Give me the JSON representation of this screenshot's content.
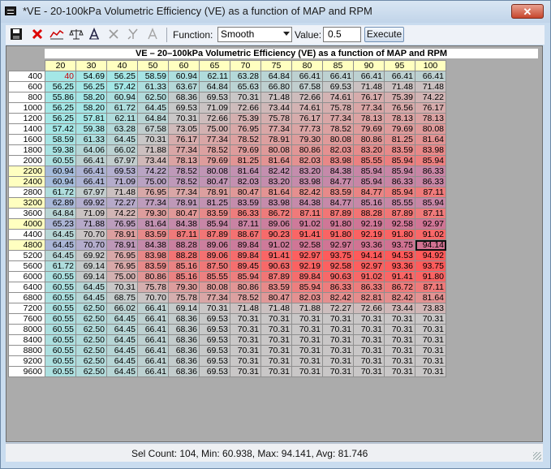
{
  "window": {
    "title": "*VE - 20-100kPa Volumetric Efficiency (VE) as a function of MAP and RPM",
    "close_glyph": "✕"
  },
  "toolbar": {
    "icons": [
      "save-icon",
      "delete-icon",
      "graph-icon",
      "scale-icon",
      "interpolate-icon",
      "clear-icon",
      "smooth-icon",
      "text-icon"
    ],
    "function_label": "Function:",
    "function_value": "Smooth",
    "value_label": "Value:",
    "value_text": "0.5",
    "execute_label": "Execute"
  },
  "table": {
    "title": "VE – 20–100kPa Volumetric Efficiency (VE) as a function of MAP and RPM",
    "columns": [
      "20",
      "30",
      "40",
      "50",
      "60",
      "65",
      "70",
      "75",
      "80",
      "85",
      "90",
      "95",
      "100"
    ],
    "rows": [
      {
        "rpm": "400",
        "values": [
          "40",
          "54.69",
          "56.25",
          "58.59",
          "60.94",
          "62.11",
          "63.28",
          "64.84",
          "66.41",
          "66.41",
          "66.41",
          "66.41",
          "66.41"
        ]
      },
      {
        "rpm": "600",
        "values": [
          "56.25",
          "56.25",
          "57.42",
          "61.33",
          "63.67",
          "64.84",
          "65.63",
          "66.80",
          "67.58",
          "69.53",
          "71.48",
          "71.48",
          "71.48"
        ]
      },
      {
        "rpm": "800",
        "values": [
          "55.86",
          "58.20",
          "60.94",
          "62.50",
          "68.36",
          "69.53",
          "70.31",
          "71.48",
          "72.66",
          "74.61",
          "76.17",
          "75.39",
          "74.22"
        ]
      },
      {
        "rpm": "1000",
        "values": [
          "56.25",
          "58.20",
          "61.72",
          "64.45",
          "69.53",
          "71.09",
          "72.66",
          "73.44",
          "74.61",
          "75.78",
          "77.34",
          "76.56",
          "76.17"
        ]
      },
      {
        "rpm": "1200",
        "values": [
          "56.25",
          "57.81",
          "62.11",
          "64.84",
          "70.31",
          "72.66",
          "75.39",
          "75.78",
          "76.17",
          "77.34",
          "78.13",
          "78.13",
          "78.13"
        ]
      },
      {
        "rpm": "1400",
        "values": [
          "57.42",
          "59.38",
          "63.28",
          "67.58",
          "73.05",
          "75.00",
          "76.95",
          "77.34",
          "77.73",
          "78.52",
          "79.69",
          "79.69",
          "80.08"
        ]
      },
      {
        "rpm": "1600",
        "values": [
          "58.59",
          "61.33",
          "64.45",
          "70.31",
          "76.17",
          "77.34",
          "78.52",
          "78.91",
          "79.30",
          "80.08",
          "80.86",
          "81.25",
          "81.64"
        ]
      },
      {
        "rpm": "1800",
        "values": [
          "59.38",
          "64.06",
          "66.02",
          "71.88",
          "77.34",
          "78.52",
          "79.69",
          "80.08",
          "80.86",
          "82.03",
          "83.20",
          "83.59",
          "83.98"
        ]
      },
      {
        "rpm": "2000",
        "values": [
          "60.55",
          "66.41",
          "67.97",
          "73.44",
          "78.13",
          "79.69",
          "81.25",
          "81.64",
          "82.03",
          "83.98",
          "85.55",
          "85.94",
          "85.94"
        ]
      },
      {
        "rpm": "2200",
        "values": [
          "60.94",
          "66.41",
          "69.53",
          "74.22",
          "78.52",
          "80.08",
          "81.64",
          "82.42",
          "83.20",
          "84.38",
          "85.94",
          "85.94",
          "86.33"
        ]
      },
      {
        "rpm": "2400",
        "values": [
          "60.94",
          "66.41",
          "71.09",
          "75.00",
          "78.52",
          "80.47",
          "82.03",
          "83.20",
          "83.98",
          "84.77",
          "85.94",
          "86.33",
          "86.33"
        ]
      },
      {
        "rpm": "2800",
        "values": [
          "61.72",
          "67.97",
          "71.48",
          "76.95",
          "77.34",
          "78.91",
          "80.47",
          "81.64",
          "82.42",
          "83.59",
          "84.77",
          "85.94",
          "87.11"
        ]
      },
      {
        "rpm": "3200",
        "values": [
          "62.89",
          "69.92",
          "72.27",
          "77.34",
          "78.91",
          "81.25",
          "83.59",
          "83.98",
          "84.38",
          "84.77",
          "85.16",
          "85.55",
          "85.94"
        ]
      },
      {
        "rpm": "3600",
        "values": [
          "64.84",
          "71.09",
          "74.22",
          "79.30",
          "80.47",
          "83.59",
          "86.33",
          "86.72",
          "87.11",
          "87.89",
          "88.28",
          "87.89",
          "87.11"
        ]
      },
      {
        "rpm": "4000",
        "values": [
          "65.23",
          "71.88",
          "76.95",
          "81.64",
          "84.38",
          "85.94",
          "87.11",
          "89.06",
          "91.02",
          "91.80",
          "92.19",
          "92.58",
          "92.97"
        ]
      },
      {
        "rpm": "4400",
        "values": [
          "64.45",
          "70.70",
          "78.91",
          "83.59",
          "87.11",
          "87.89",
          "88.67",
          "90.23",
          "91.41",
          "91.80",
          "92.19",
          "91.80",
          "91.02"
        ]
      },
      {
        "rpm": "4800",
        "values": [
          "64.45",
          "70.70",
          "78.91",
          "84.38",
          "88.28",
          "89.06",
          "89.84",
          "91.02",
          "92.58",
          "92.97",
          "93.36",
          "93.75",
          "94.14"
        ]
      },
      {
        "rpm": "5200",
        "values": [
          "64.45",
          "69.92",
          "76.95",
          "83.98",
          "88.28",
          "89.06",
          "89.84",
          "91.41",
          "92.97",
          "93.75",
          "94.14",
          "94.53",
          "94.92"
        ]
      },
      {
        "rpm": "5600",
        "values": [
          "61.72",
          "69.14",
          "76.95",
          "83.59",
          "85.16",
          "87.50",
          "89.45",
          "90.63",
          "92.19",
          "92.58",
          "92.97",
          "93.36",
          "93.75"
        ]
      },
      {
        "rpm": "6000",
        "values": [
          "60.55",
          "69.14",
          "75.00",
          "80.86",
          "85.16",
          "85.55",
          "85.94",
          "87.89",
          "89.84",
          "90.63",
          "91.02",
          "91.41",
          "91.80"
        ]
      },
      {
        "rpm": "6400",
        "values": [
          "60.55",
          "64.45",
          "70.31",
          "75.78",
          "79.30",
          "80.08",
          "80.86",
          "83.59",
          "85.94",
          "86.33",
          "86.33",
          "86.72",
          "87.11"
        ]
      },
      {
        "rpm": "6800",
        "values": [
          "60.55",
          "64.45",
          "68.75",
          "70.70",
          "75.78",
          "77.34",
          "78.52",
          "80.47",
          "82.03",
          "82.42",
          "82.81",
          "82.42",
          "81.64"
        ]
      },
      {
        "rpm": "7200",
        "values": [
          "60.55",
          "62.50",
          "66.02",
          "66.41",
          "69.14",
          "70.31",
          "71.48",
          "71.48",
          "71.88",
          "72.27",
          "72.66",
          "73.44",
          "73.83"
        ]
      },
      {
        "rpm": "7600",
        "values": [
          "60.55",
          "62.50",
          "64.45",
          "66.41",
          "68.36",
          "69.53",
          "70.31",
          "70.31",
          "70.31",
          "70.31",
          "70.31",
          "70.31",
          "70.31"
        ]
      },
      {
        "rpm": "8000",
        "values": [
          "60.55",
          "62.50",
          "64.45",
          "66.41",
          "68.36",
          "69.53",
          "70.31",
          "70.31",
          "70.31",
          "70.31",
          "70.31",
          "70.31",
          "70.31"
        ]
      },
      {
        "rpm": "8400",
        "values": [
          "60.55",
          "62.50",
          "64.45",
          "66.41",
          "68.36",
          "69.53",
          "70.31",
          "70.31",
          "70.31",
          "70.31",
          "70.31",
          "70.31",
          "70.31"
        ]
      },
      {
        "rpm": "8800",
        "values": [
          "60.55",
          "62.50",
          "64.45",
          "66.41",
          "68.36",
          "69.53",
          "70.31",
          "70.31",
          "70.31",
          "70.31",
          "70.31",
          "70.31",
          "70.31"
        ]
      },
      {
        "rpm": "9200",
        "values": [
          "60.55",
          "62.50",
          "64.45",
          "66.41",
          "68.36",
          "69.53",
          "70.31",
          "70.31",
          "70.31",
          "70.31",
          "70.31",
          "70.31",
          "70.31"
        ]
      },
      {
        "rpm": "9600",
        "values": [
          "60.55",
          "62.50",
          "64.45",
          "66.41",
          "68.36",
          "69.53",
          "70.31",
          "70.31",
          "70.31",
          "70.31",
          "70.31",
          "70.31",
          "70.31"
        ]
      }
    ],
    "selected_rows": [
      "2200",
      "2400",
      "3200",
      "4000",
      "4800"
    ],
    "current_cell": {
      "rpm": "4800",
      "column": "100"
    },
    "colors": {
      "low": "#a4e7e6",
      "mid": "#c8c8c8",
      "high": "#ff5a5a",
      "selected_tint": "#9a8fd6"
    }
  },
  "status": {
    "text": "Sel Count: 104, Min: 60.938, Max: 94.141, Avg: 81.746"
  }
}
